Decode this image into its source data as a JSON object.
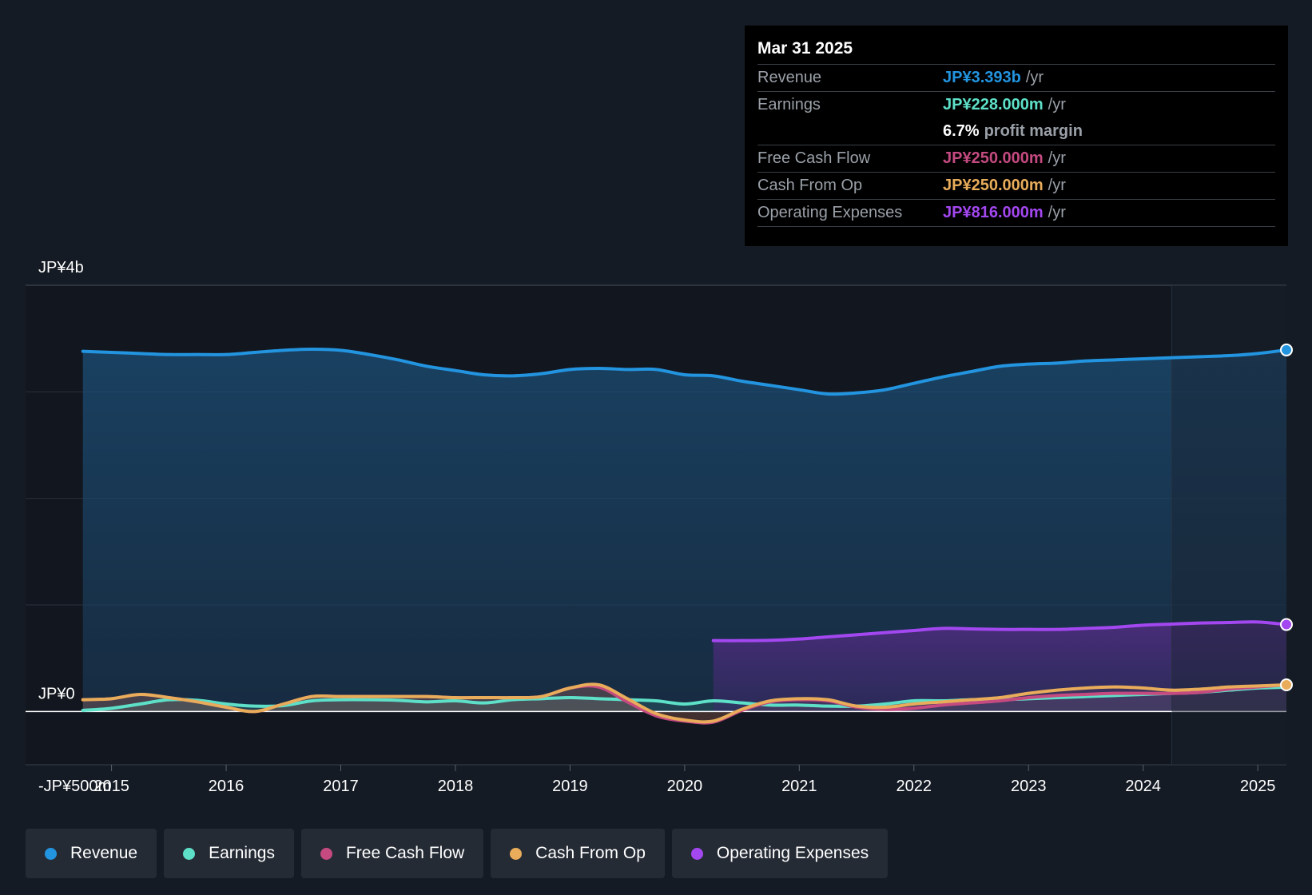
{
  "tooltip": {
    "date": "Mar 31 2025",
    "rows": [
      {
        "label": "Revenue",
        "value": "JP¥3.393b",
        "unit": "/yr"
      },
      {
        "label": "Earnings",
        "value": "JP¥228.000m",
        "unit": "/yr"
      },
      {
        "label": "",
        "value": "6.7%",
        "unit": "profit margin"
      },
      {
        "label": "Free Cash Flow",
        "value": "JP¥250.000m",
        "unit": "/yr"
      },
      {
        "label": "Cash From Op",
        "value": "JP¥250.000m",
        "unit": "/yr"
      },
      {
        "label": "Operating Expenses",
        "value": "JP¥816.000m",
        "unit": "/yr"
      }
    ]
  },
  "legend": [
    {
      "label": "Revenue",
      "color": "#2394df"
    },
    {
      "label": "Earnings",
      "color": "#5ee0c8"
    },
    {
      "label": "Free Cash Flow",
      "color": "#c44a80"
    },
    {
      "label": "Cash From Op",
      "color": "#e8ac5a"
    },
    {
      "label": "Operating Expenses",
      "color": "#a347f0"
    }
  ],
  "chart_data": {
    "type": "area",
    "title": "",
    "xlabel": "",
    "ylabel": "",
    "ylim": [
      -500,
      4000
    ],
    "y_tick_labels": [
      "JP¥4b",
      "JP¥0",
      "-JP¥500m"
    ],
    "y_tick_values": [
      4000,
      0,
      -500
    ],
    "x_tick_labels": [
      "2015",
      "2016",
      "2017",
      "2018",
      "2019",
      "2020",
      "2021",
      "2022",
      "2023",
      "2024",
      "2025"
    ],
    "x_range": [
      2014.25,
      2025.25
    ],
    "highlight_start": 2024.25,
    "series": [
      {
        "name": "Revenue",
        "color": "#2394df",
        "x": [
          2014.75,
          2015.0,
          2015.25,
          2015.5,
          2015.75,
          2016.0,
          2016.25,
          2016.5,
          2016.75,
          2017.0,
          2017.25,
          2017.5,
          2017.75,
          2018.0,
          2018.25,
          2018.5,
          2018.75,
          2019.0,
          2019.25,
          2019.5,
          2019.75,
          2020.0,
          2020.25,
          2020.5,
          2020.75,
          2021.0,
          2021.25,
          2021.5,
          2021.75,
          2022.0,
          2022.25,
          2022.5,
          2022.75,
          2023.0,
          2023.25,
          2023.5,
          2023.75,
          2024.0,
          2024.25,
          2024.5,
          2024.75,
          2025.0,
          2025.25
        ],
        "values": [
          3380,
          3370,
          3360,
          3350,
          3350,
          3350,
          3370,
          3390,
          3400,
          3390,
          3350,
          3300,
          3240,
          3200,
          3160,
          3150,
          3170,
          3210,
          3220,
          3210,
          3210,
          3160,
          3150,
          3100,
          3060,
          3020,
          2980,
          2990,
          3020,
          3080,
          3140,
          3190,
          3240,
          3260,
          3270,
          3290,
          3300,
          3310,
          3320,
          3330,
          3340,
          3360,
          3393
        ]
      },
      {
        "name": "Earnings",
        "color": "#5ee0c8",
        "x": [
          2014.75,
          2015.0,
          2015.25,
          2015.5,
          2015.75,
          2016.0,
          2016.25,
          2016.5,
          2016.75,
          2017.0,
          2017.25,
          2017.5,
          2017.75,
          2018.0,
          2018.25,
          2018.5,
          2018.75,
          2019.0,
          2019.25,
          2019.5,
          2019.75,
          2020.0,
          2020.25,
          2020.5,
          2020.75,
          2021.0,
          2021.25,
          2021.5,
          2021.75,
          2022.0,
          2022.25,
          2022.5,
          2022.75,
          2023.0,
          2023.25,
          2023.5,
          2023.75,
          2024.0,
          2024.25,
          2024.5,
          2024.75,
          2025.0,
          2025.25
        ],
        "values": [
          10,
          30,
          70,
          110,
          105,
          70,
          50,
          55,
          100,
          110,
          110,
          105,
          90,
          100,
          80,
          110,
          120,
          130,
          120,
          110,
          100,
          70,
          100,
          80,
          60,
          60,
          50,
          50,
          70,
          100,
          100,
          110,
          110,
          120,
          130,
          140,
          150,
          160,
          170,
          180,
          200,
          220,
          228
        ]
      },
      {
        "name": "Free Cash Flow",
        "color": "#c44a80",
        "x": [
          2014.75,
          2015.0,
          2015.25,
          2015.5,
          2015.75,
          2016.0,
          2016.25,
          2016.5,
          2016.75,
          2017.0,
          2017.25,
          2017.5,
          2017.75,
          2018.0,
          2018.25,
          2018.5,
          2018.75,
          2019.0,
          2019.25,
          2019.5,
          2019.75,
          2020.0,
          2020.25,
          2020.5,
          2020.75,
          2021.0,
          2021.25,
          2021.5,
          2021.75,
          2022.0,
          2022.25,
          2022.5,
          2022.75,
          2023.0,
          2023.25,
          2023.5,
          2023.75,
          2024.0,
          2024.25,
          2024.5,
          2024.75,
          2025.0,
          2025.25
        ],
        "values": [
          110,
          120,
          160,
          130,
          90,
          40,
          0,
          70,
          140,
          140,
          140,
          140,
          140,
          130,
          130,
          130,
          140,
          220,
          230,
          90,
          -40,
          -90,
          -100,
          10,
          90,
          110,
          100,
          40,
          20,
          30,
          60,
          80,
          100,
          130,
          150,
          160,
          170,
          170,
          170,
          180,
          210,
          230,
          250
        ]
      },
      {
        "name": "Cash From Op",
        "color": "#e8ac5a",
        "x": [
          2014.75,
          2015.0,
          2015.25,
          2015.5,
          2015.75,
          2016.0,
          2016.25,
          2016.5,
          2016.75,
          2017.0,
          2017.25,
          2017.5,
          2017.75,
          2018.0,
          2018.25,
          2018.5,
          2018.75,
          2019.0,
          2019.25,
          2019.5,
          2019.75,
          2020.0,
          2020.25,
          2020.5,
          2020.75,
          2021.0,
          2021.25,
          2021.5,
          2021.75,
          2022.0,
          2022.25,
          2022.5,
          2022.75,
          2023.0,
          2023.25,
          2023.5,
          2023.75,
          2024.0,
          2024.25,
          2024.5,
          2024.75,
          2025.0,
          2025.25
        ],
        "values": [
          110,
          120,
          160,
          130,
          90,
          40,
          0,
          70,
          140,
          140,
          140,
          140,
          140,
          130,
          130,
          130,
          140,
          220,
          250,
          120,
          -20,
          -80,
          -90,
          20,
          100,
          120,
          110,
          50,
          40,
          70,
          90,
          110,
          130,
          170,
          200,
          220,
          230,
          220,
          200,
          210,
          230,
          240,
          250
        ]
      },
      {
        "name": "Operating Expenses",
        "color": "#a347f0",
        "x": [
          2020.25,
          2020.5,
          2020.75,
          2021.0,
          2021.25,
          2021.5,
          2021.75,
          2022.0,
          2022.25,
          2022.5,
          2022.75,
          2023.0,
          2023.25,
          2023.5,
          2023.75,
          2024.0,
          2024.25,
          2024.5,
          2024.75,
          2025.0,
          2025.25
        ],
        "values": [
          665,
          665,
          668,
          680,
          700,
          720,
          740,
          760,
          780,
          775,
          770,
          770,
          770,
          780,
          790,
          810,
          820,
          830,
          835,
          840,
          816
        ]
      }
    ]
  }
}
